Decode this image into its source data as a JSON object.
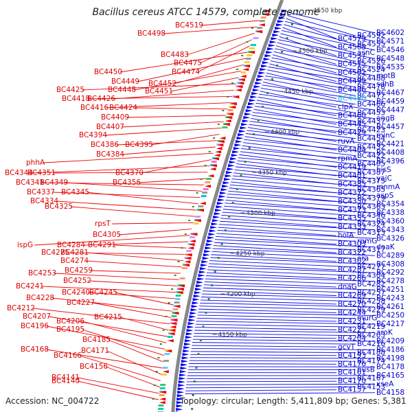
{
  "title": "Bacillus cereus ATCC 14579, complete genome",
  "footer": {
    "accession": "Accession: NC_004722",
    "topology": "Topology: circular; Length: 5,411,809 bp; Genes: 5,381"
  },
  "colors": {
    "forward_gene": "#0000ee",
    "reverse_gene": "#ee0000",
    "left_label": "#dd0000",
    "right_label": "#0000cc",
    "highlight_label": "#2fb7d8",
    "backbone": "#888888",
    "gc_marker": "#2e8b2e"
  },
  "scale_marks": [
    "4550 kbp",
    "4500 kbp",
    "4450 kbp",
    "4400 kbp",
    "4350 kbp",
    "4300 kbp",
    "4250 kbp",
    "4200 kbp",
    "4150 kbp"
  ],
  "left_labels": [
    "BC4519",
    "BC4498",
    "BC4483",
    "BC4475",
    "BC4474",
    "BC4450",
    "BC4449",
    "BC4452",
    "BC4448",
    "BC4451",
    "BC4425",
    "BC4426",
    "BC4418",
    "BC4416",
    "BC4424",
    "BC4409",
    "BC4407",
    "BC4394",
    "BC4395",
    "BC4386",
    "BC4384",
    "phhA",
    "BC4370",
    "BC4344",
    "BC4351",
    "BC4356",
    "BC4341",
    "BC4349",
    "BC4337",
    "BC4345",
    "BC4334",
    "BC4325",
    "rpsT",
    "BC4305",
    "ispG",
    "BC4284",
    "BC4291",
    "BC4275",
    "BC4281",
    "BC4274",
    "BC4259",
    "BC4253",
    "BC4252",
    "BC4241",
    "BC4240",
    "BC4245",
    "BC4228",
    "BC4227",
    "BC4212",
    "BC4215",
    "BC4207",
    "BC4206",
    "BC4196",
    "BC4195",
    "BC4185",
    "BC4168",
    "BC4171",
    "BC4166",
    "BC4156",
    "BC4141",
    "BC4140"
  ],
  "right_labels": [
    "BC4602",
    "BC4592",
    "BC4579",
    "BC4571",
    "BC4555",
    "BC4568",
    "BC4546",
    "asnC",
    "BC4537",
    "BC4548",
    "BC4526",
    "BC4515",
    "BC4535",
    "BC4524",
    "BC4502",
    "motB",
    "BC4488",
    "BC4499",
    "sdhB",
    "BC4478",
    "BC4486",
    "BC4467",
    "BC4477",
    "BC4490",
    "BC4459",
    "BC4466",
    "clpX",
    "BC4447",
    "BC4453",
    "BC4460",
    "engB",
    "BC4437",
    "BC4445",
    "BC4457",
    "BC4423",
    "BC4429",
    "minC",
    "BC4454",
    "ruvA",
    "BC4421",
    "BC4432",
    "BC4404",
    "BC4408",
    "BC4422",
    "rpmA",
    "BC4396",
    "BC4405",
    "BC4419",
    "hisS",
    "BC4387",
    "BC4401",
    "yajC",
    "BC4375",
    "BC4385",
    "mnmA",
    "BC4365",
    "BC4372",
    "aspS",
    "BC4379",
    "BC4350",
    "BC4354",
    "BC4363",
    "BC4373",
    "BC4338",
    "BC4346",
    "BC4355",
    "BC4360",
    "BC4324",
    "BC4333",
    "BC4343",
    "BC4313",
    "holA",
    "BC4326",
    "rpmG",
    "BC4303",
    "dnaK",
    "BC4317",
    "BC4322",
    "BC4289",
    "era",
    "BC4302",
    "BC4308",
    "BC4277",
    "BC4287",
    "BC4292",
    "BC4304",
    "BC4266",
    "BC4278",
    "BC4282",
    "dnaG",
    "BC4251",
    "BC4257",
    "BC4269",
    "BC4243",
    "BC4258",
    "BC4270",
    "BC4261",
    "BC4229",
    "BC4244",
    "BC4250",
    "murG",
    "BC4231",
    "BC4217",
    "BC4219",
    "BC4225",
    "aroK",
    "BC4203",
    "BC4204",
    "BC4209",
    "BC4216",
    "gcvT",
    "BC4186",
    "BC4188",
    "BC4193",
    "BC4198",
    "BC4174",
    "BC4176",
    "BC4178",
    "nusB",
    "BC4161",
    "BC4165",
    "BC4167",
    "BC4170",
    "xseA",
    "BC4153",
    "BC4157",
    "BC4158"
  ]
}
